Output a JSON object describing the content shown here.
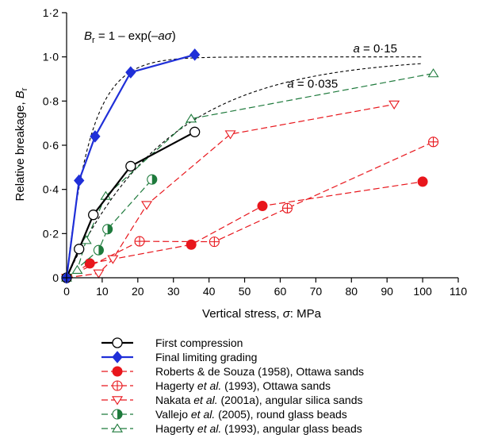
{
  "chart_data": {
    "type": "line",
    "xlabel_text": "Vertical stress, ",
    "xlabel_symbol": "σ",
    "xlabel_unit": ": MPa",
    "ylabel_text": "Relative breakage, ",
    "ylabel_symbol": "B",
    "ylabel_sub": "r",
    "xlim": [
      0,
      110
    ],
    "ylim": [
      0,
      1.2
    ],
    "xticks": [
      0,
      10,
      20,
      30,
      40,
      50,
      60,
      70,
      80,
      90,
      100,
      110
    ],
    "yticks": [
      0,
      0.2,
      0.4,
      0.6,
      0.8,
      1.0,
      1.2
    ],
    "xtick_labels": [
      "0",
      "10",
      "20",
      "30",
      "40",
      "50",
      "60",
      "70",
      "80",
      "90",
      "100",
      "110"
    ],
    "ytick_labels": [
      "0",
      "0·2",
      "0·4",
      "0·6",
      "0·8",
      "1·0",
      "1·2"
    ],
    "grid": false,
    "legend_position": "bottom",
    "annotations": {
      "formula_b": "B",
      "formula_sub": "r",
      "formula_eq": " = 1 – exp(–",
      "formula_a": "a",
      "formula_sigma": "σ",
      "formula_close": ")",
      "a1_var": "a",
      "a1_val": " = 0·15",
      "a2_var": "a",
      "a2_val": " = 0·035"
    },
    "curves": [
      {
        "a": 0.15,
        "label_x": 80.5,
        "label_y": 1.02
      },
      {
        "a": 0.035,
        "label_x": 62,
        "label_y": 0.86
      }
    ],
    "series": [
      {
        "name": "First compression",
        "color": "#000000",
        "dash": "solid",
        "marker": "circle-open",
        "x": [
          0,
          3.5,
          7.5,
          18,
          36
        ],
        "y": [
          0,
          0.13,
          0.285,
          0.505,
          0.66
        ]
      },
      {
        "name": "Final limiting grading",
        "color": "#1f2fd8",
        "dash": "solid",
        "marker": "diamond",
        "x": [
          0,
          3.5,
          8,
          18,
          36
        ],
        "y": [
          0,
          0.44,
          0.64,
          0.93,
          1.01
        ]
      },
      {
        "name": "Roberts & de Souza (1958), Ottawa sands",
        "color": "#e8161c",
        "dash": "dashed",
        "marker": "circle-filled",
        "x": [
          0,
          6.5,
          35,
          55,
          100
        ],
        "y": [
          0,
          0.065,
          0.15,
          0.325,
          0.435
        ]
      },
      {
        "name": "Hagerty et al. (1993), Ottawa sands",
        "color": "#e8161c",
        "dash": "dashed",
        "marker": "circle-cross",
        "x": [
          0,
          20.5,
          41.5,
          62,
          103
        ],
        "y": [
          0,
          0.165,
          0.163,
          0.315,
          0.615
        ]
      },
      {
        "name": "Nakata et al. (2001a), angular silica sands",
        "color": "#e8161c",
        "dash": "dashed",
        "marker": "triangle-down",
        "x": [
          0,
          9,
          13,
          22.5,
          46,
          92
        ],
        "y": [
          0,
          0.02,
          0.085,
          0.33,
          0.65,
          0.785
        ]
      },
      {
        "name": "Vallejo et al. (2005), round glass beads",
        "color": "#1e7a3c",
        "dash": "dashed",
        "marker": "circle-half",
        "x": [
          0,
          9,
          11.5,
          24
        ],
        "y": [
          0,
          0.125,
          0.22,
          0.445
        ]
      },
      {
        "name": "Hagerty et al. (1993), angular glass beads",
        "color": "#1e7a3c",
        "dash": "dashed",
        "marker": "triangle-up",
        "x": [
          0,
          3,
          5.5,
          11,
          35,
          103
        ],
        "y": [
          0,
          0.035,
          0.17,
          0.37,
          0.72,
          0.925
        ]
      }
    ]
  }
}
